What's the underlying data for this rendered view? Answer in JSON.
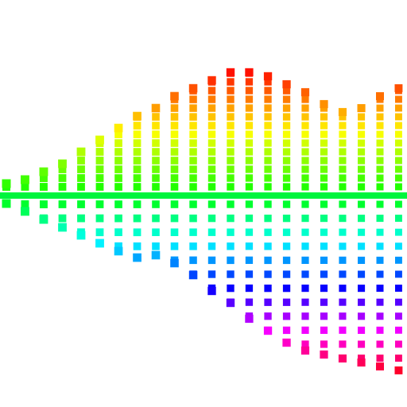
{
  "artwork": {
    "kind": "abstract-square-spectrum",
    "background": "#ffffff",
    "palette": [
      "#ff0000",
      "#ff8000",
      "#ffff00",
      "#00ff00",
      "#00ffff",
      "#0080ff",
      "#8000ff",
      "#ff00ff",
      "#ff0060"
    ],
    "columns": [
      {
        "top": 0.15,
        "bottom": 0.1
      },
      {
        "top": 0.2,
        "bottom": 0.2
      },
      {
        "top": 0.3,
        "bottom": 0.3
      },
      {
        "top": 0.4,
        "bottom": 0.4
      },
      {
        "top": 0.55,
        "bottom": 0.5
      },
      {
        "top": 0.7,
        "bottom": 0.6
      },
      {
        "top": 0.85,
        "bottom": 0.7
      },
      {
        "top": 1.0,
        "bottom": 0.78
      },
      {
        "top": 1.1,
        "bottom": 0.75
      },
      {
        "top": 1.25,
        "bottom": 0.85
      },
      {
        "top": 1.35,
        "bottom": 1.0
      },
      {
        "top": 1.45,
        "bottom": 1.2
      },
      {
        "top": 1.55,
        "bottom": 1.35
      },
      {
        "top": 1.55,
        "bottom": 1.55
      },
      {
        "top": 1.5,
        "bottom": 1.7
      },
      {
        "top": 1.4,
        "bottom": 1.85
      },
      {
        "top": 1.3,
        "bottom": 1.95
      },
      {
        "top": 1.15,
        "bottom": 2.0
      },
      {
        "top": 1.05,
        "bottom": 2.05
      },
      {
        "top": 1.1,
        "bottom": 2.1
      },
      {
        "top": 1.25,
        "bottom": 2.15
      },
      {
        "top": 1.35,
        "bottom": 2.2
      }
    ]
  }
}
